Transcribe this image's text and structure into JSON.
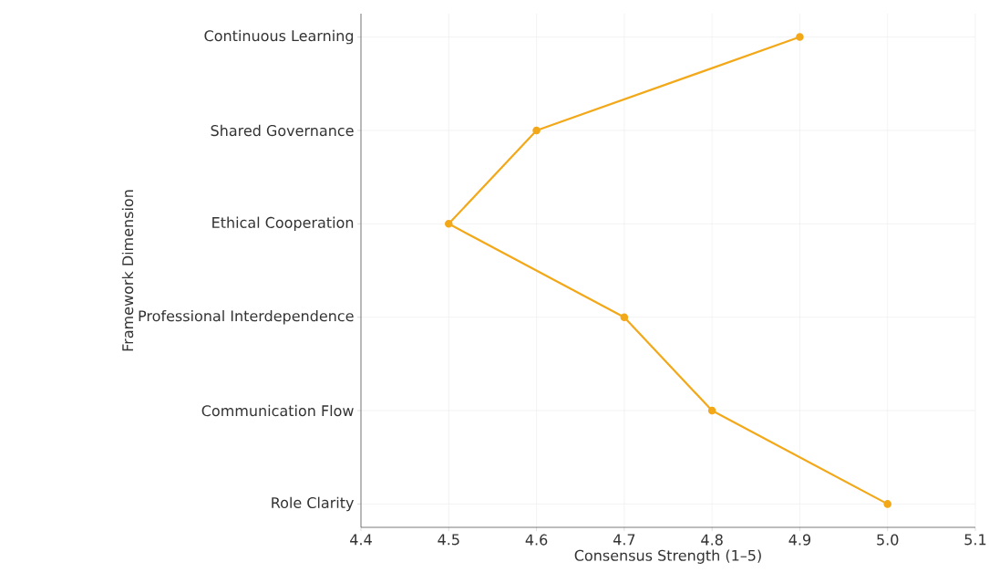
{
  "chart_data": {
    "type": "line",
    "orientation": "horizontal",
    "categories": [
      "Continuous Learning",
      "Shared Governance",
      "Ethical Cooperation",
      "Professional Interdependence",
      "Communication Flow",
      "Role Clarity"
    ],
    "values": [
      4.9,
      4.6,
      4.5,
      4.7,
      4.8,
      5.0
    ],
    "color": "#f2a818",
    "xlim": [
      4.4,
      5.1
    ],
    "xticks": [
      4.4,
      4.5,
      4.6,
      4.7,
      4.8,
      4.9,
      {
        "value": 5.0,
        "label": "5.0"
      },
      5.1
    ],
    "xlabel": "Consensus Strength (1–5)",
    "ylabel": "Framework Dimension",
    "grid": true,
    "marker": "circle",
    "line_style": "solid"
  }
}
